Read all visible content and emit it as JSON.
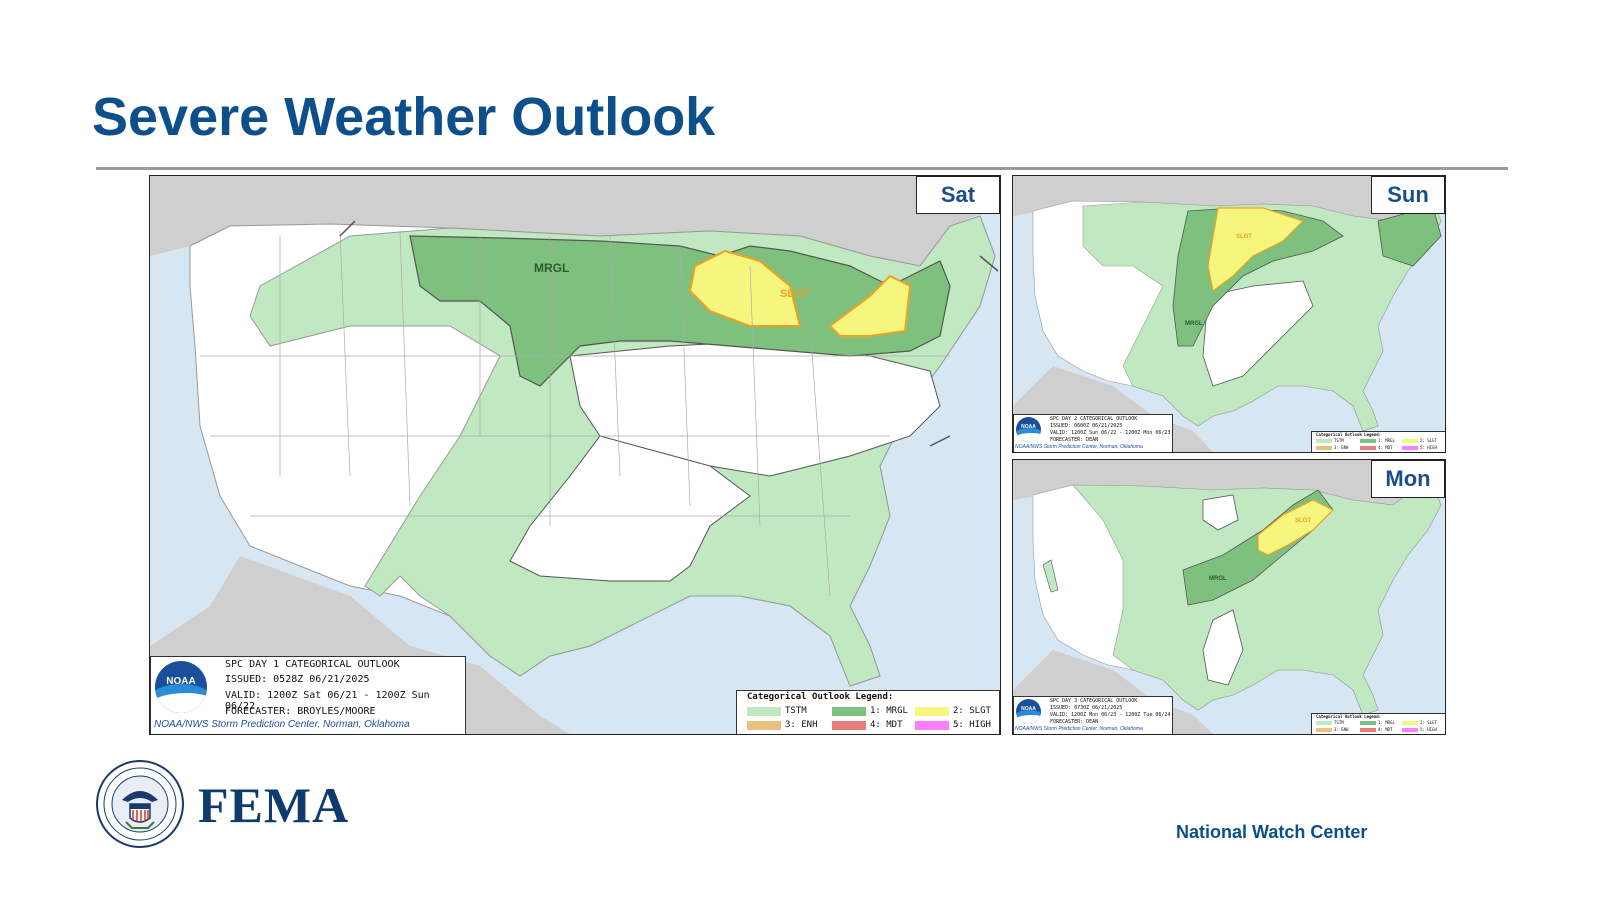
{
  "title": "Severe Weather Outlook",
  "colors": {
    "title": "#0d4f8b",
    "tstm": "#c1e9c1",
    "mrgl": "#7ec17e",
    "slgt": "#f6f67e",
    "enh": "#e6c27e",
    "mdt": "#e67e7e",
    "high": "#ff7eff",
    "water": "#d7e6f3",
    "land_outside": "#cfcfcf"
  },
  "panels": {
    "sat": {
      "day_label": "Sat",
      "risk_labels": {
        "mrgl": "MRGL",
        "slgt": "SLGT"
      },
      "info": {
        "line1": "SPC DAY 1 CATEGORICAL OUTLOOK",
        "line2": "ISSUED: 0528Z 06/21/2025",
        "line3": "VALID: 1200Z Sat 06/21 - 1200Z Sun 06/22",
        "line4": "FORECASTER: BROYLES/MOORE"
      },
      "credit": "NOAA/NWS Storm Prediction Center, Norman, Oklahoma"
    },
    "sun": {
      "day_label": "Sun",
      "risk_labels": {
        "mrgl": "MRGL",
        "slgt": "SLGT"
      },
      "info": {
        "line1": "SPC DAY 2 CATEGORICAL OUTLOOK",
        "line2": "ISSUED: 0600Z 06/21/2025",
        "line3": "VALID: 1200Z Sun 06/22 - 1200Z Mon 06/23",
        "line4": "FORECASTER: DEAN"
      },
      "credit": "NOAA/NWS Storm Prediction Center, Norman, Oklahoma"
    },
    "mon": {
      "day_label": "Mon",
      "risk_labels": {
        "mrgl": "MRGL",
        "slgt": "SLGT"
      },
      "info": {
        "line1": "SPC DAY 3 CATEGORICAL OUTLOOK",
        "line2": "ISSUED: 0730Z 06/21/2025",
        "line3": "VALID: 1200Z Mon 06/23 - 1200Z Tue 06/24",
        "line4": "FORECASTER: DEAN"
      },
      "credit": "NOAA/NWS Storm Prediction Center, Norman, Oklahoma"
    }
  },
  "noaa_logo_text": "NOAA",
  "legend": {
    "title": "Categorical Outlook Legend:",
    "items": [
      "TSTM",
      "1: MRGL",
      "2: SLGT",
      "3: ENH",
      "4: MDT",
      "5: HIGH"
    ]
  },
  "footer": {
    "logo_text": "FEMA",
    "right_text": "National Watch Center"
  }
}
